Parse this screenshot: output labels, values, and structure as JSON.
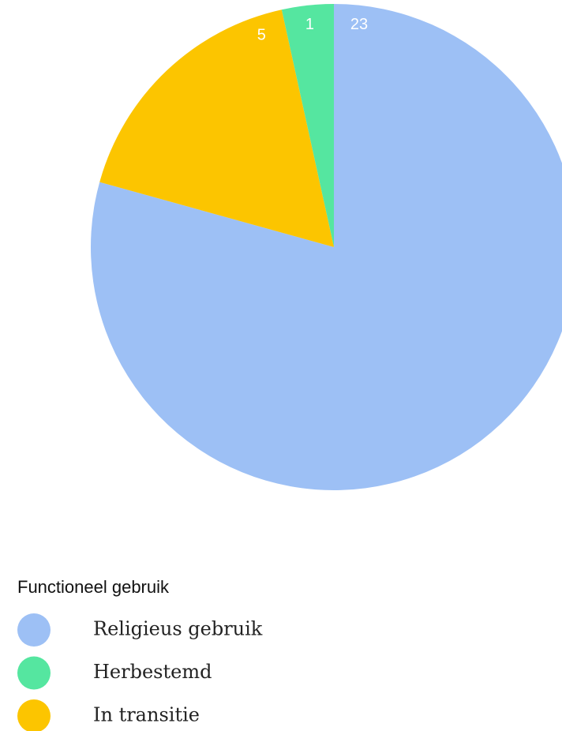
{
  "chart_data": {
    "type": "pie",
    "legend_title": "Functioneel gebruik",
    "categories": [
      "Religieus gebruik",
      "Herbestemd",
      "In transitie"
    ],
    "values": [
      23,
      1,
      5
    ],
    "colors": [
      "#9dc0f5",
      "#55e6a0",
      "#fcc500"
    ],
    "legend": "bottom-left"
  }
}
